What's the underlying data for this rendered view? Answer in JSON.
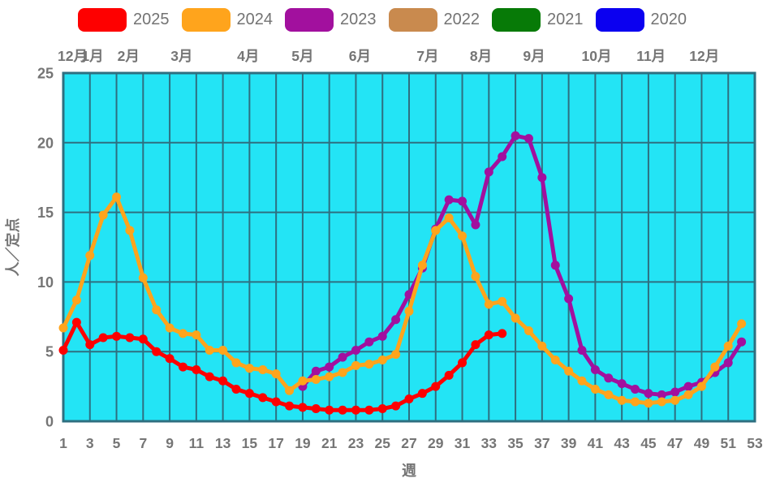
{
  "page": {
    "background": "#ffffff"
  },
  "legend": {
    "items": [
      {
        "label": "2025",
        "color": "#fe0000"
      },
      {
        "label": "2024",
        "color": "#ffa41c"
      },
      {
        "label": "2023",
        "color": "#a2109e"
      },
      {
        "label": "2022",
        "color": "#c98a4e"
      },
      {
        "label": "2021",
        "color": "#077a07"
      },
      {
        "label": "2020",
        "color": "#0b00f0"
      }
    ]
  },
  "chart_data": {
    "type": "line",
    "title": "",
    "xlabel": "週",
    "ylabel": "人／定点",
    "xlim": [
      1,
      53
    ],
    "ylim": [
      0,
      25
    ],
    "grid": true,
    "legend_position": "top",
    "x_ticks": [
      1,
      3,
      5,
      7,
      9,
      11,
      13,
      15,
      17,
      19,
      21,
      23,
      25,
      27,
      29,
      31,
      33,
      35,
      37,
      39,
      41,
      43,
      45,
      47,
      49,
      51,
      53
    ],
    "y_ticks": [
      0,
      5,
      10,
      15,
      20,
      25
    ],
    "month_labels": [
      {
        "label": "12月",
        "week": 1.7
      },
      {
        "label": "1月",
        "week": 3.2
      },
      {
        "label": "2月",
        "week": 5.9
      },
      {
        "label": "3月",
        "week": 9.9
      },
      {
        "label": "4月",
        "week": 14.9
      },
      {
        "label": "5月",
        "week": 19.0
      },
      {
        "label": "6月",
        "week": 23.3
      },
      {
        "label": "7月",
        "week": 28.4
      },
      {
        "label": "8月",
        "week": 32.4
      },
      {
        "label": "9月",
        "week": 36.4
      },
      {
        "label": "10月",
        "week": 41.1
      },
      {
        "label": "11月",
        "week": 45.2
      },
      {
        "label": "12月",
        "week": 49.2
      }
    ],
    "series": [
      {
        "name": "2025",
        "color": "#fe0000",
        "start_week": 1,
        "values": [
          5.1,
          7.1,
          5.5,
          6.0,
          6.1,
          6.0,
          5.9,
          5.0,
          4.5,
          3.9,
          3.7,
          3.2,
          2.9,
          2.3,
          2.0,
          1.7,
          1.4,
          1.1,
          1.0,
          0.9,
          0.8,
          0.8,
          0.8,
          0.8,
          0.9,
          1.1,
          1.6,
          2.0,
          2.5,
          3.3,
          4.2,
          5.5,
          6.2,
          6.3
        ]
      },
      {
        "name": "2024",
        "color": "#ffa41c",
        "start_week": 1,
        "values": [
          6.7,
          8.7,
          11.9,
          14.8,
          16.1,
          13.7,
          10.3,
          8.0,
          6.7,
          6.3,
          6.2,
          5.1,
          5.1,
          4.2,
          3.8,
          3.7,
          3.4,
          2.2,
          2.9,
          3.0,
          3.2,
          3.5,
          4.0,
          4.1,
          4.4,
          4.8,
          7.9,
          11.2,
          13.7,
          14.6,
          13.3,
          10.4,
          8.4,
          8.6,
          7.4,
          6.5,
          5.4,
          4.4,
          3.6,
          2.9,
          2.3,
          1.9,
          1.5,
          1.4,
          1.3,
          1.4,
          1.5,
          1.9,
          2.5,
          3.9,
          5.4,
          7.0
        ]
      },
      {
        "name": "2023",
        "color": "#a2109e",
        "start_week": 19,
        "values": [
          2.5,
          3.6,
          3.9,
          4.6,
          5.1,
          5.7,
          6.1,
          7.3,
          9.1,
          11.0,
          13.8,
          15.9,
          15.8,
          14.1,
          17.9,
          19.0,
          20.5,
          20.3,
          17.5,
          11.2,
          8.8,
          5.1,
          3.7,
          3.1,
          2.7,
          2.3,
          2.0,
          1.9,
          2.1,
          2.5,
          2.8,
          3.5,
          4.2,
          5.7
        ]
      },
      {
        "name": "2022",
        "color": "#c98a4e",
        "start_week": 1,
        "values": []
      },
      {
        "name": "2021",
        "color": "#077a07",
        "start_week": 1,
        "values": []
      },
      {
        "name": "2020",
        "color": "#0b00f0",
        "start_week": 1,
        "values": []
      }
    ],
    "colors": {
      "plot_bg": "#23e4f5",
      "grid": "#2e6f80",
      "axis_text": "#757575"
    }
  }
}
